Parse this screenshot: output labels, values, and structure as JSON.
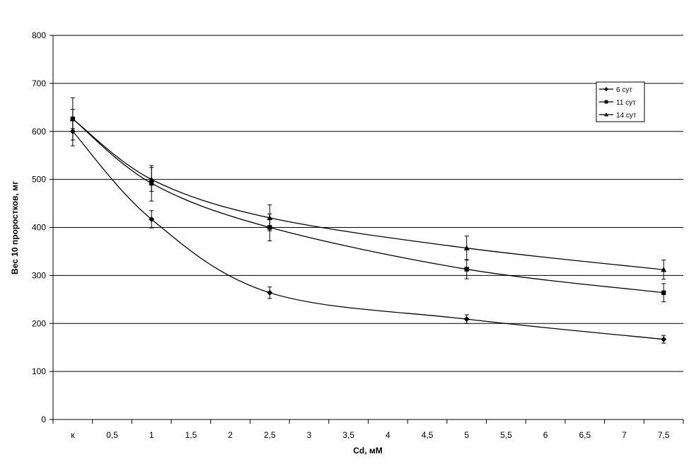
{
  "chart_data": {
    "type": "line",
    "xlabel": "Cd, мМ",
    "ylabel": "Вес 10 проростков, мг",
    "ylim": [
      0,
      800
    ],
    "yticks": [
      0,
      100,
      200,
      300,
      400,
      500,
      600,
      700,
      800
    ],
    "categories": [
      "к",
      "0,5",
      "1",
      "1,5",
      "2",
      "2,5",
      "3",
      "3,5",
      "4",
      "4,5",
      "5",
      "5,5",
      "6",
      "6,5",
      "7",
      "7,5"
    ],
    "grid": "horizontal",
    "legend_position": "top-right",
    "series": [
      {
        "name": "6 сут",
        "marker": "diamond",
        "x": [
          "к",
          "1",
          "2,5",
          "5",
          "7,5"
        ],
        "values": [
          600,
          417,
          264,
          209,
          167
        ],
        "errors": [
          30,
          18,
          12,
          9,
          8
        ]
      },
      {
        "name": "11 сут",
        "marker": "square",
        "x": [
          "к",
          "1",
          "2,5",
          "5",
          "7,5"
        ],
        "values": [
          626,
          492,
          400,
          313,
          264
        ],
        "errors": [
          44,
          37,
          28,
          20,
          19
        ]
      },
      {
        "name": "14 сут",
        "marker": "triangle",
        "x": [
          "к",
          "1",
          "2,5",
          "5",
          "7,5"
        ],
        "values": [
          626,
          500,
          420,
          357,
          312
        ],
        "errors": [
          20,
          25,
          27,
          25,
          20
        ]
      }
    ]
  }
}
